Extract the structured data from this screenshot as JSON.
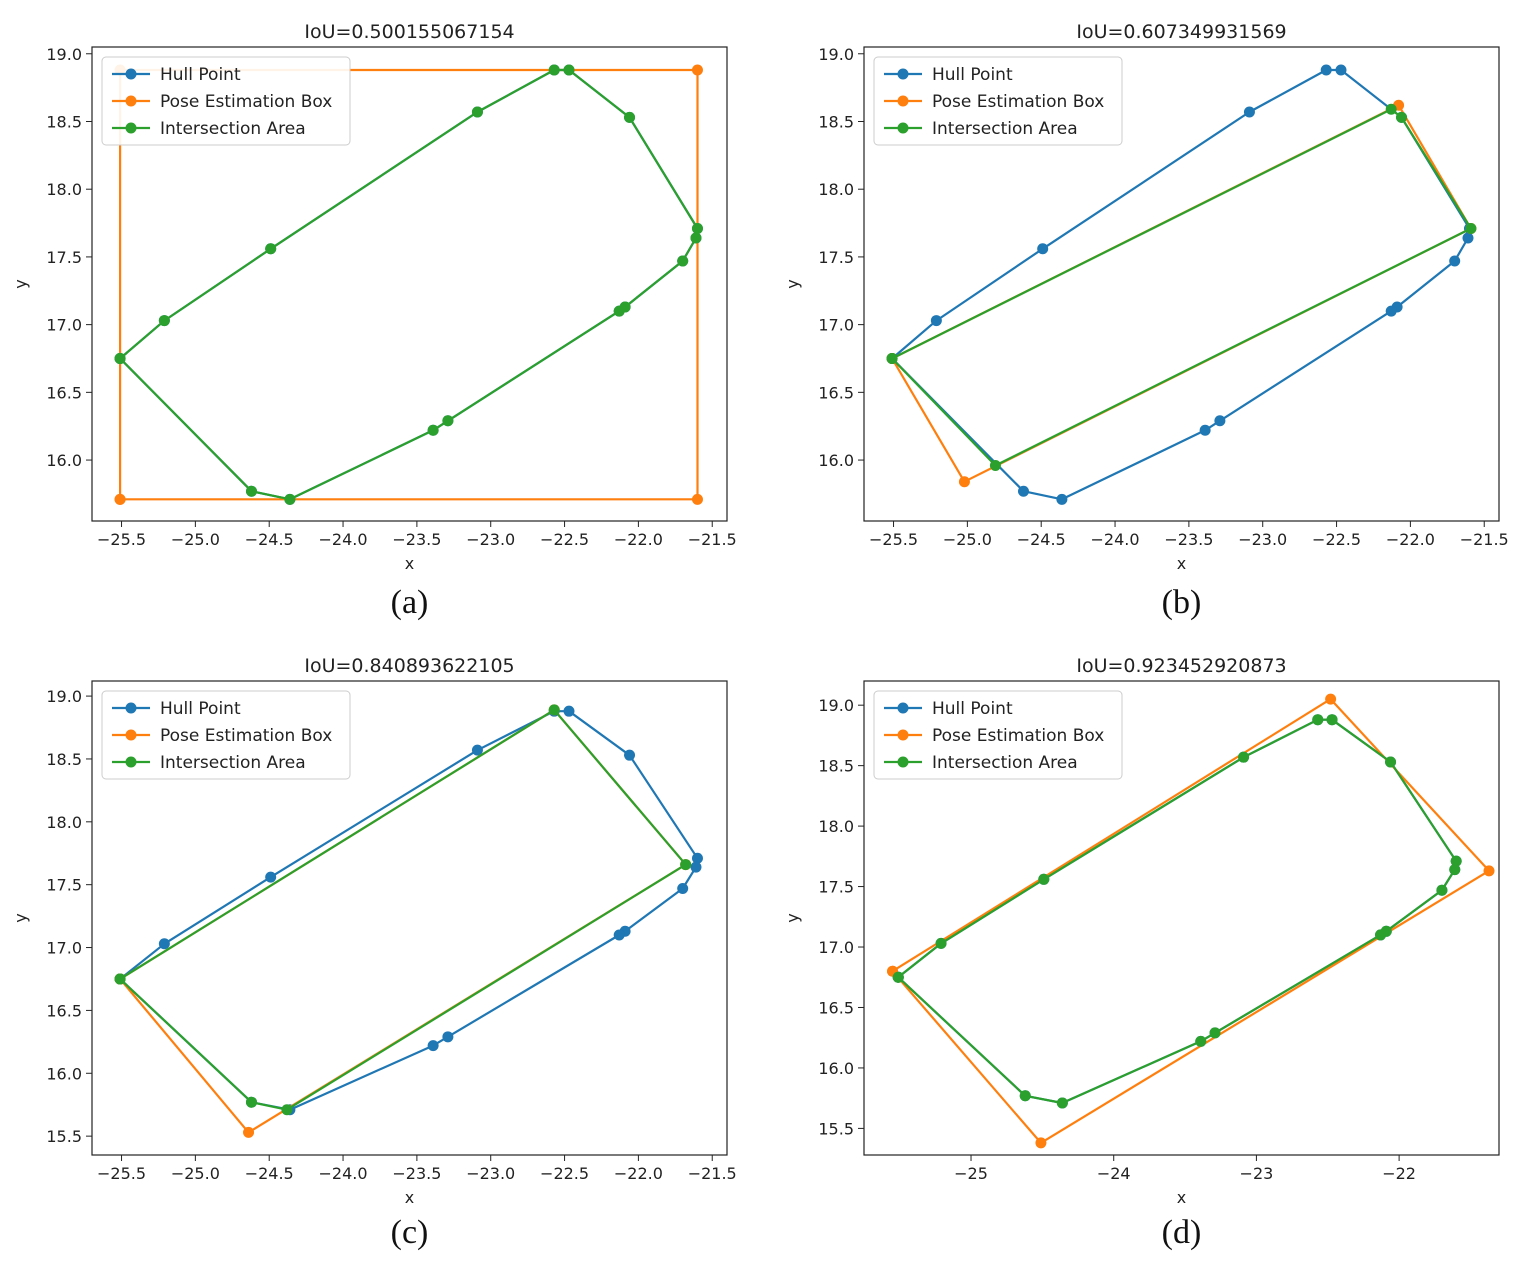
{
  "colors": {
    "hull": "#1f77b4",
    "box": "#ff7f0e",
    "inter": "#2ca02c"
  },
  "chart_data": [
    {
      "type": "line",
      "title": "IoU=0.500155067154",
      "caption": "(a)",
      "xlabel": "x",
      "ylabel": "y",
      "xlim": [
        -25.7,
        -21.4
      ],
      "ylim": [
        15.55,
        19.05
      ],
      "xticks": [
        -25.5,
        -25.0,
        -24.5,
        -24.0,
        -23.5,
        -23.0,
        -22.5,
        -22.0,
        -21.5
      ],
      "xtick_labels": [
        "−25.5",
        "−25.0",
        "−24.5",
        "−24.0",
        "−23.5",
        "−23.0",
        "−22.5",
        "−22.0",
        "−21.5"
      ],
      "yticks": [
        16.0,
        16.5,
        17.0,
        17.5,
        18.0,
        18.5,
        19.0
      ],
      "ytick_labels": [
        "16.0",
        "16.5",
        "17.0",
        "17.5",
        "18.0",
        "18.5",
        "19.0"
      ],
      "legend": [
        "Hull Point",
        "Pose Estimation Box",
        "Intersection Area"
      ],
      "series": [
        {
          "name": "Hull Point",
          "color_key": "hull",
          "x": [
            -25.51,
            -25.21,
            -24.49,
            -23.09,
            -22.57,
            -22.47,
            -22.06,
            -21.6,
            -21.61,
            -21.7,
            -22.09,
            -22.13,
            -23.29,
            -23.39,
            -24.36,
            -24.62,
            -25.51
          ],
          "y": [
            16.75,
            17.03,
            17.56,
            18.57,
            18.88,
            18.88,
            18.53,
            17.71,
            17.64,
            17.47,
            17.13,
            17.1,
            16.29,
            16.22,
            15.71,
            15.77,
            16.75
          ]
        },
        {
          "name": "Pose Estimation Box",
          "color_key": "box",
          "x": [
            -25.51,
            -21.6,
            -21.6,
            -25.51,
            -25.51
          ],
          "y": [
            15.71,
            15.71,
            18.88,
            18.88,
            15.71
          ]
        },
        {
          "name": "Intersection Area",
          "color_key": "inter",
          "x": [
            -25.51,
            -25.21,
            -24.49,
            -23.09,
            -22.57,
            -22.47,
            -22.06,
            -21.6,
            -21.61,
            -21.7,
            -22.09,
            -22.13,
            -23.29,
            -23.39,
            -24.36,
            -24.62,
            -25.51
          ],
          "y": [
            16.75,
            17.03,
            17.56,
            18.57,
            18.88,
            18.88,
            18.53,
            17.71,
            17.64,
            17.47,
            17.13,
            17.1,
            16.29,
            16.22,
            15.71,
            15.77,
            16.75
          ]
        }
      ]
    },
    {
      "type": "line",
      "title": "IoU=0.607349931569",
      "caption": "(b)",
      "xlabel": "x",
      "ylabel": "y",
      "xlim": [
        -25.7,
        -21.4
      ],
      "ylim": [
        15.55,
        19.05
      ],
      "xticks": [
        -25.5,
        -25.0,
        -24.5,
        -24.0,
        -23.5,
        -23.0,
        -22.5,
        -22.0,
        -21.5
      ],
      "xtick_labels": [
        "−25.5",
        "−25.0",
        "−24.5",
        "−24.0",
        "−23.5",
        "−23.0",
        "−22.5",
        "−22.0",
        "−21.5"
      ],
      "yticks": [
        16.0,
        16.5,
        17.0,
        17.5,
        18.0,
        18.5,
        19.0
      ],
      "ytick_labels": [
        "16.0",
        "16.5",
        "17.0",
        "17.5",
        "18.0",
        "18.5",
        "19.0"
      ],
      "legend": [
        "Hull Point",
        "Pose Estimation Box",
        "Intersection Area"
      ],
      "series": [
        {
          "name": "Hull Point",
          "color_key": "hull",
          "x": [
            -25.51,
            -25.21,
            -24.49,
            -23.09,
            -22.57,
            -22.47,
            -22.06,
            -21.6,
            -21.61,
            -21.7,
            -22.09,
            -22.13,
            -23.29,
            -23.39,
            -24.36,
            -24.62,
            -25.51
          ],
          "y": [
            16.75,
            17.03,
            17.56,
            18.57,
            18.88,
            18.88,
            18.53,
            17.71,
            17.64,
            17.47,
            17.13,
            17.1,
            16.29,
            16.22,
            15.71,
            15.77,
            16.75
          ]
        },
        {
          "name": "Pose Estimation Box",
          "color_key": "box",
          "x": [
            -25.51,
            -22.08,
            -21.59,
            -25.02,
            -25.51
          ],
          "y": [
            16.75,
            18.62,
            17.71,
            15.84,
            16.75
          ]
        },
        {
          "name": "Intersection Area",
          "color_key": "inter",
          "x": [
            -25.51,
            -22.13,
            -22.06,
            -21.59,
            -24.81,
            -25.51
          ],
          "y": [
            16.75,
            18.59,
            18.53,
            17.71,
            15.96,
            16.75
          ]
        }
      ]
    },
    {
      "type": "line",
      "title": "IoU=0.840893622105",
      "caption": "(c)",
      "xlabel": "x",
      "ylabel": "y",
      "xlim": [
        -25.7,
        -21.4
      ],
      "ylim": [
        15.35,
        19.12
      ],
      "xticks": [
        -25.5,
        -25.0,
        -24.5,
        -24.0,
        -23.5,
        -23.0,
        -22.5,
        -22.0,
        -21.5
      ],
      "xtick_labels": [
        "−25.5",
        "−25.0",
        "−24.5",
        "−24.0",
        "−23.5",
        "−23.0",
        "−22.5",
        "−22.0",
        "−21.5"
      ],
      "yticks": [
        15.5,
        16.0,
        16.5,
        17.0,
        17.5,
        18.0,
        18.5,
        19.0
      ],
      "ytick_labels": [
        "15.5",
        "16.0",
        "16.5",
        "17.0",
        "17.5",
        "18.0",
        "18.5",
        "19.0"
      ],
      "legend": [
        "Hull Point",
        "Pose Estimation Box",
        "Intersection Area"
      ],
      "series": [
        {
          "name": "Hull Point",
          "color_key": "hull",
          "x": [
            -25.51,
            -25.21,
            -24.49,
            -23.09,
            -22.57,
            -22.47,
            -22.06,
            -21.6,
            -21.61,
            -21.7,
            -22.09,
            -22.13,
            -23.29,
            -23.39,
            -24.36,
            -24.62,
            -25.51
          ],
          "y": [
            16.75,
            17.03,
            17.56,
            18.57,
            18.88,
            18.88,
            18.53,
            17.71,
            17.64,
            17.47,
            17.13,
            17.1,
            16.29,
            16.22,
            15.71,
            15.77,
            16.75
          ]
        },
        {
          "name": "Pose Estimation Box",
          "color_key": "box",
          "x": [
            -25.51,
            -22.57,
            -21.68,
            -24.64,
            -25.51
          ],
          "y": [
            16.75,
            18.89,
            17.66,
            15.53,
            16.75
          ]
        },
        {
          "name": "Intersection Area",
          "color_key": "inter",
          "x": [
            -25.51,
            -22.57,
            -21.68,
            -24.38,
            -24.62,
            -25.51
          ],
          "y": [
            16.75,
            18.89,
            17.66,
            15.71,
            15.77,
            16.75
          ]
        }
      ]
    },
    {
      "type": "line",
      "title": "IoU=0.923452920873",
      "caption": "(d)",
      "xlabel": "x",
      "ylabel": "y",
      "xlim": [
        -25.75,
        -21.3
      ],
      "ylim": [
        15.28,
        19.2
      ],
      "xticks": [
        -25,
        -24,
        -23,
        -22
      ],
      "xtick_labels": [
        "−25",
        "−24",
        "−23",
        "−22"
      ],
      "yticks": [
        15.5,
        16.0,
        16.5,
        17.0,
        17.5,
        18.0,
        18.5,
        19.0
      ],
      "ytick_labels": [
        "15.5",
        "16.0",
        "16.5",
        "17.0",
        "17.5",
        "18.0",
        "18.5",
        "19.0"
      ],
      "legend": [
        "Hull Point",
        "Pose Estimation Box",
        "Intersection Area"
      ],
      "series": [
        {
          "name": "Hull Point",
          "color_key": "hull",
          "x": [
            -25.51,
            -25.21,
            -24.49,
            -23.09,
            -22.57,
            -22.47,
            -22.06,
            -21.6,
            -21.61,
            -21.7,
            -22.09,
            -22.13,
            -23.29,
            -23.39,
            -24.36,
            -24.62,
            -25.51
          ],
          "y": [
            16.75,
            17.03,
            17.56,
            18.57,
            18.88,
            18.88,
            18.53,
            17.71,
            17.64,
            17.47,
            17.13,
            17.1,
            16.29,
            16.22,
            15.71,
            15.77,
            16.75
          ]
        },
        {
          "name": "Pose Estimation Box",
          "color_key": "box",
          "x": [
            -25.55,
            -22.48,
            -21.37,
            -24.51,
            -25.55
          ],
          "y": [
            16.8,
            19.05,
            17.63,
            15.38,
            16.8
          ]
        },
        {
          "name": "Intersection Area",
          "color_key": "inter",
          "x": [
            -25.51,
            -25.21,
            -24.49,
            -23.09,
            -22.57,
            -22.47,
            -22.06,
            -21.6,
            -21.61,
            -21.7,
            -22.09,
            -22.13,
            -23.29,
            -23.39,
            -24.36,
            -24.62,
            -25.51
          ],
          "y": [
            16.75,
            17.03,
            17.56,
            18.57,
            18.88,
            18.88,
            18.53,
            17.71,
            17.64,
            17.47,
            17.13,
            17.1,
            16.29,
            16.22,
            15.71,
            15.77,
            16.75
          ]
        }
      ]
    }
  ]
}
